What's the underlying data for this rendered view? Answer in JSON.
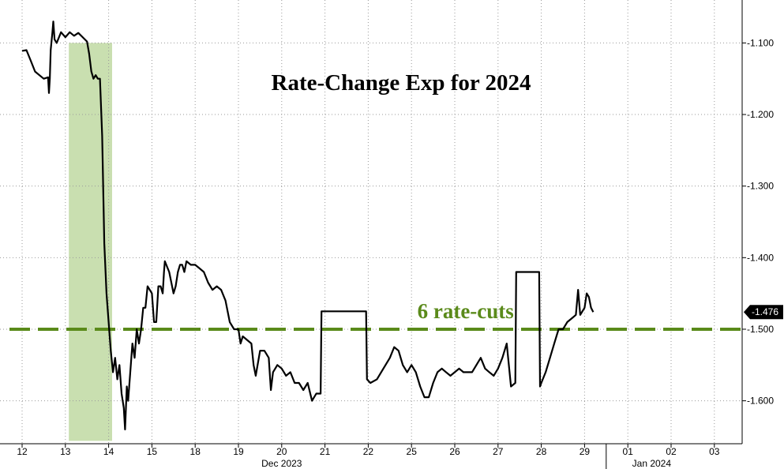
{
  "chart_data": {
    "type": "line",
    "title": "Rate-Change Exp for 2024",
    "xlabel": "",
    "ylabel": "",
    "ylim": [
      -1.66,
      -1.04
    ],
    "y_ticks": [
      -1.1,
      -1.2,
      -1.3,
      -1.4,
      -1.5,
      -1.6
    ],
    "y_tick_labels": [
      "-1.100",
      "-1.200",
      "-1.300",
      "-1.400",
      "-1.500",
      "-1.600"
    ],
    "x_ticks": [
      "12",
      "13",
      "14",
      "15",
      "18",
      "19",
      "20",
      "21",
      "22",
      "25",
      "26",
      "27",
      "28",
      "29",
      "01",
      "02",
      "03"
    ],
    "x_month_labels": [
      "Dec 2023",
      "Jan 2024"
    ],
    "grid": true,
    "last_value_label": "-1.476",
    "highlight_band": {
      "from_day": "13",
      "to_day": "14",
      "color": "#c9dfb0"
    },
    "reference_line": {
      "value": -1.5,
      "label": "6 rate-cuts",
      "color": "#5a8a1a",
      "style": "dashed"
    },
    "series": [
      {
        "color": "#000000",
        "points": [
          [
            0.0,
            -1.111
          ],
          [
            0.1,
            -1.11
          ],
          [
            0.2,
            -1.125
          ],
          [
            0.3,
            -1.14
          ],
          [
            0.4,
            -1.145
          ],
          [
            0.5,
            -1.15
          ],
          [
            0.6,
            -1.148
          ],
          [
            0.62,
            -1.17
          ],
          [
            0.64,
            -1.15
          ],
          [
            0.66,
            -1.11
          ],
          [
            0.7,
            -1.085
          ],
          [
            0.72,
            -1.07
          ],
          [
            0.75,
            -1.095
          ],
          [
            0.8,
            -1.1
          ],
          [
            0.9,
            -1.085
          ],
          [
            1.0,
            -1.092
          ],
          [
            1.1,
            -1.085
          ],
          [
            1.2,
            -1.09
          ],
          [
            1.3,
            -1.086
          ],
          [
            1.4,
            -1.092
          ],
          [
            1.5,
            -1.098
          ],
          [
            1.55,
            -1.115
          ],
          [
            1.6,
            -1.14
          ],
          [
            1.65,
            -1.15
          ],
          [
            1.7,
            -1.145
          ],
          [
            1.75,
            -1.15
          ],
          [
            1.8,
            -1.15
          ],
          [
            1.85,
            -1.23
          ],
          [
            1.9,
            -1.38
          ],
          [
            1.95,
            -1.45
          ],
          [
            2.0,
            -1.49
          ],
          [
            2.05,
            -1.53
          ],
          [
            2.1,
            -1.56
          ],
          [
            2.15,
            -1.54
          ],
          [
            2.2,
            -1.57
          ],
          [
            2.25,
            -1.55
          ],
          [
            2.3,
            -1.59
          ],
          [
            2.35,
            -1.61
          ],
          [
            2.38,
            -1.64
          ],
          [
            2.42,
            -1.58
          ],
          [
            2.45,
            -1.6
          ],
          [
            2.5,
            -1.56
          ],
          [
            2.55,
            -1.52
          ],
          [
            2.6,
            -1.54
          ],
          [
            2.65,
            -1.5
          ],
          [
            2.7,
            -1.52
          ],
          [
            2.75,
            -1.5
          ],
          [
            2.8,
            -1.47
          ],
          [
            2.85,
            -1.47
          ],
          [
            2.9,
            -1.44
          ],
          [
            3.0,
            -1.45
          ],
          [
            3.05,
            -1.49
          ],
          [
            3.1,
            -1.49
          ],
          [
            3.15,
            -1.44
          ],
          [
            3.2,
            -1.44
          ],
          [
            3.25,
            -1.45
          ],
          [
            3.28,
            -1.42
          ],
          [
            3.3,
            -1.405
          ],
          [
            3.4,
            -1.42
          ],
          [
            3.5,
            -1.45
          ],
          [
            3.55,
            -1.44
          ],
          [
            3.6,
            -1.42
          ],
          [
            3.65,
            -1.41
          ],
          [
            3.7,
            -1.41
          ],
          [
            3.75,
            -1.42
          ],
          [
            3.8,
            -1.405
          ],
          [
            3.9,
            -1.41
          ],
          [
            4.0,
            -1.41
          ],
          [
            4.1,
            -1.415
          ],
          [
            4.2,
            -1.42
          ],
          [
            4.3,
            -1.435
          ],
          [
            4.4,
            -1.445
          ],
          [
            4.5,
            -1.44
          ],
          [
            4.6,
            -1.445
          ],
          [
            4.7,
            -1.46
          ],
          [
            4.8,
            -1.49
          ],
          [
            4.9,
            -1.5
          ],
          [
            5.0,
            -1.5
          ],
          [
            5.05,
            -1.52
          ],
          [
            5.1,
            -1.51
          ],
          [
            5.2,
            -1.515
          ],
          [
            5.3,
            -1.52
          ],
          [
            5.35,
            -1.55
          ],
          [
            5.4,
            -1.565
          ],
          [
            5.5,
            -1.53
          ],
          [
            5.6,
            -1.53
          ],
          [
            5.7,
            -1.54
          ],
          [
            5.75,
            -1.585
          ],
          [
            5.8,
            -1.56
          ],
          [
            5.9,
            -1.55
          ],
          [
            6.0,
            -1.555
          ],
          [
            6.1,
            -1.565
          ],
          [
            6.2,
            -1.56
          ],
          [
            6.3,
            -1.575
          ],
          [
            6.4,
            -1.575
          ],
          [
            6.5,
            -1.585
          ],
          [
            6.6,
            -1.575
          ],
          [
            6.7,
            -1.6
          ],
          [
            6.8,
            -1.59
          ],
          [
            6.9,
            -1.59
          ],
          [
            6.92,
            -1.475
          ],
          [
            7.95,
            -1.475
          ],
          [
            7.97,
            -1.57
          ],
          [
            8.05,
            -1.575
          ],
          [
            8.2,
            -1.57
          ],
          [
            8.3,
            -1.56
          ],
          [
            8.4,
            -1.55
          ],
          [
            8.5,
            -1.54
          ],
          [
            8.6,
            -1.525
          ],
          [
            8.7,
            -1.53
          ],
          [
            8.8,
            -1.55
          ],
          [
            8.9,
            -1.56
          ],
          [
            9.0,
            -1.55
          ],
          [
            9.1,
            -1.56
          ],
          [
            9.2,
            -1.58
          ],
          [
            9.3,
            -1.595
          ],
          [
            9.4,
            -1.595
          ],
          [
            9.5,
            -1.575
          ],
          [
            9.6,
            -1.56
          ],
          [
            9.7,
            -1.555
          ],
          [
            9.8,
            -1.56
          ],
          [
            9.9,
            -1.565
          ],
          [
            10.0,
            -1.56
          ],
          [
            10.1,
            -1.555
          ],
          [
            10.2,
            -1.56
          ],
          [
            10.3,
            -1.56
          ],
          [
            10.4,
            -1.56
          ],
          [
            10.5,
            -1.55
          ],
          [
            10.6,
            -1.54
          ],
          [
            10.7,
            -1.555
          ],
          [
            10.8,
            -1.56
          ],
          [
            10.9,
            -1.565
          ],
          [
            11.0,
            -1.555
          ],
          [
            11.1,
            -1.54
          ],
          [
            11.2,
            -1.52
          ],
          [
            11.3,
            -1.58
          ],
          [
            11.4,
            -1.575
          ],
          [
            11.42,
            -1.42
          ],
          [
            11.95,
            -1.42
          ],
          [
            11.97,
            -1.58
          ],
          [
            12.0,
            -1.575
          ],
          [
            12.1,
            -1.56
          ],
          [
            12.2,
            -1.54
          ],
          [
            12.3,
            -1.52
          ],
          [
            12.4,
            -1.5
          ],
          [
            12.5,
            -1.5
          ],
          [
            12.6,
            -1.49
          ],
          [
            12.7,
            -1.485
          ],
          [
            12.8,
            -1.48
          ],
          [
            12.85,
            -1.445
          ],
          [
            12.9,
            -1.48
          ],
          [
            13.0,
            -1.47
          ],
          [
            13.05,
            -1.45
          ],
          [
            13.1,
            -1.455
          ],
          [
            13.15,
            -1.47
          ],
          [
            13.2,
            -1.476
          ]
        ]
      }
    ]
  }
}
